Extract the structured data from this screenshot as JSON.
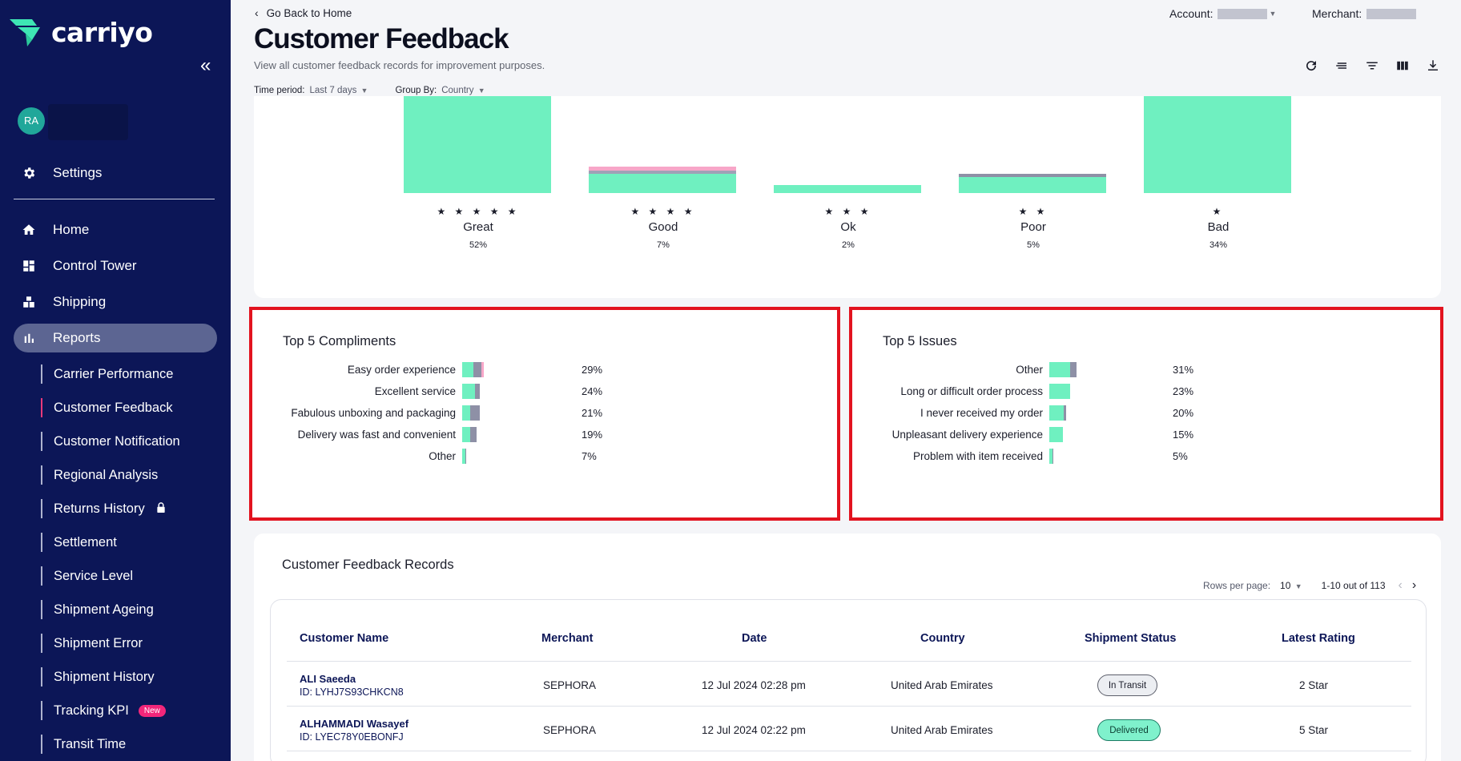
{
  "brand": {
    "name": "carriyo"
  },
  "user": {
    "initials": "RA"
  },
  "sidebar": {
    "settings": "Settings",
    "items": [
      "Home",
      "Control Tower",
      "Shipping",
      "Reports"
    ],
    "reports": [
      {
        "label": "Carrier Performance"
      },
      {
        "label": "Customer Feedback"
      },
      {
        "label": "Customer Notification"
      },
      {
        "label": "Regional Analysis"
      },
      {
        "label": "Returns History",
        "icon": "lock-icon"
      },
      {
        "label": "Settlement"
      },
      {
        "label": "Service Level"
      },
      {
        "label": "Shipment Ageing"
      },
      {
        "label": "Shipment Error"
      },
      {
        "label": "Shipment History"
      },
      {
        "label": "Tracking KPI",
        "badge": "New"
      },
      {
        "label": "Transit Time"
      }
    ]
  },
  "header": {
    "back": "Go Back to Home",
    "title": "Customer Feedback",
    "subtitle": "View all customer feedback records for improvement purposes.",
    "account_label": "Account:",
    "merchant_label": "Merchant:",
    "time_label": "Time period:",
    "time_value": "Last 7 days",
    "group_label": "Group By:",
    "group_value": "Country"
  },
  "ratings": [
    {
      "stars": "★ ★ ★ ★ ★",
      "name": "Great",
      "pct": "52%",
      "level": 1.0
    },
    {
      "stars": "★ ★ ★ ★",
      "name": "Good",
      "pct": "7%",
      "level": 0.27
    },
    {
      "stars": "★ ★ ★",
      "name": "Ok",
      "pct": "2%",
      "level": 0.08
    },
    {
      "stars": "★ ★",
      "name": "Poor",
      "pct": "5%",
      "level": 0.2
    },
    {
      "stars": "★",
      "name": "Bad",
      "pct": "34%",
      "level": 1.0
    }
  ],
  "compliments": {
    "title": "Top 5 Compliments",
    "items": [
      {
        "label": "Easy order experience",
        "pct": "29%"
      },
      {
        "label": "Excellent service",
        "pct": "24%"
      },
      {
        "label": "Fabulous unboxing and packaging",
        "pct": "21%"
      },
      {
        "label": "Delivery was fast and convenient",
        "pct": "19%"
      },
      {
        "label": "Other",
        "pct": "7%"
      }
    ]
  },
  "issues": {
    "title": "Top 5 Issues",
    "items": [
      {
        "label": "Other",
        "pct": "31%"
      },
      {
        "label": "Long or difficult order process",
        "pct": "23%"
      },
      {
        "label": "I never received my order",
        "pct": "20%"
      },
      {
        "label": "Unpleasant delivery experience",
        "pct": "15%"
      },
      {
        "label": "Problem with item received",
        "pct": "5%"
      }
    ]
  },
  "records": {
    "title": "Customer Feedback Records",
    "rows_per_page_label": "Rows per page:",
    "rows_per_page": "10",
    "range": "1-10 out of 113",
    "columns": [
      "Customer Name",
      "Merchant",
      "Date",
      "Country",
      "Shipment Status",
      "Latest Rating"
    ],
    "rows": [
      {
        "name": "ALI Saeeda",
        "id": "ID: LYHJ7S93CHKCN8",
        "merchant": "SEPHORA",
        "date": "12 Jul 2024 02:28 pm",
        "country": "United Arab Emirates",
        "status": "In Transit",
        "rating": "2 Star"
      },
      {
        "name": "ALHAMMADI Wasayef",
        "id": "ID: LYEC78Y0EBONFJ",
        "merchant": "SEPHORA",
        "date": "12 Jul 2024 02:22 pm",
        "country": "United Arab Emirates",
        "status": "Delivered",
        "rating": "5 Star"
      }
    ]
  },
  "colors": {
    "sidebar": "#0c1657",
    "accent": "#6ff0c0",
    "highlight": "#e2131f",
    "grey_segment": "#8e90a6",
    "pink_segment": "#f7a6c8"
  }
}
